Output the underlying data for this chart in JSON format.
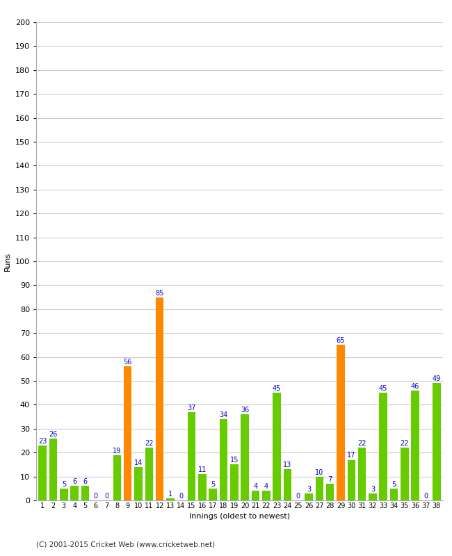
{
  "xlabel": "Innings (oldest to newest)",
  "ylabel": "Runs",
  "footer": "(C) 2001-2015 Cricket Web (www.cricketweb.net)",
  "ylim": [
    0,
    200
  ],
  "yticks": [
    0,
    10,
    20,
    30,
    40,
    50,
    60,
    70,
    80,
    90,
    100,
    110,
    120,
    130,
    140,
    150,
    160,
    170,
    180,
    190,
    200
  ],
  "innings": [
    1,
    2,
    3,
    4,
    5,
    6,
    7,
    8,
    9,
    10,
    11,
    12,
    13,
    14,
    15,
    16,
    17,
    18,
    19,
    20,
    21,
    22,
    23,
    24,
    25,
    26,
    27,
    28,
    29,
    30,
    31,
    32,
    33,
    34,
    35,
    36,
    37,
    38
  ],
  "values": [
    23,
    26,
    5,
    6,
    6,
    0,
    0,
    19,
    56,
    14,
    22,
    85,
    1,
    0,
    37,
    11,
    5,
    34,
    15,
    36,
    4,
    4,
    45,
    13,
    0,
    3,
    10,
    7,
    65,
    17,
    22,
    3,
    45,
    5,
    22,
    46,
    0,
    49
  ],
  "colors": [
    "#66cc00",
    "#66cc00",
    "#66cc00",
    "#66cc00",
    "#66cc00",
    "#66cc00",
    "#66cc00",
    "#66cc00",
    "#ff8800",
    "#66cc00",
    "#66cc00",
    "#ff8800",
    "#66cc00",
    "#66cc00",
    "#66cc00",
    "#66cc00",
    "#66cc00",
    "#66cc00",
    "#66cc00",
    "#66cc00",
    "#66cc00",
    "#66cc00",
    "#66cc00",
    "#66cc00",
    "#66cc00",
    "#66cc00",
    "#66cc00",
    "#66cc00",
    "#ff8800",
    "#66cc00",
    "#66cc00",
    "#66cc00",
    "#66cc00",
    "#66cc00",
    "#66cc00",
    "#66cc00",
    "#66cc00",
    "#66cc00"
  ],
  "label_color": "#0000cc",
  "bg_color": "#ffffff",
  "grid_color": "#cccccc",
  "title_fontsize": 0,
  "axis_fontsize": 8,
  "label_fontsize": 7,
  "bar_width": 0.75
}
